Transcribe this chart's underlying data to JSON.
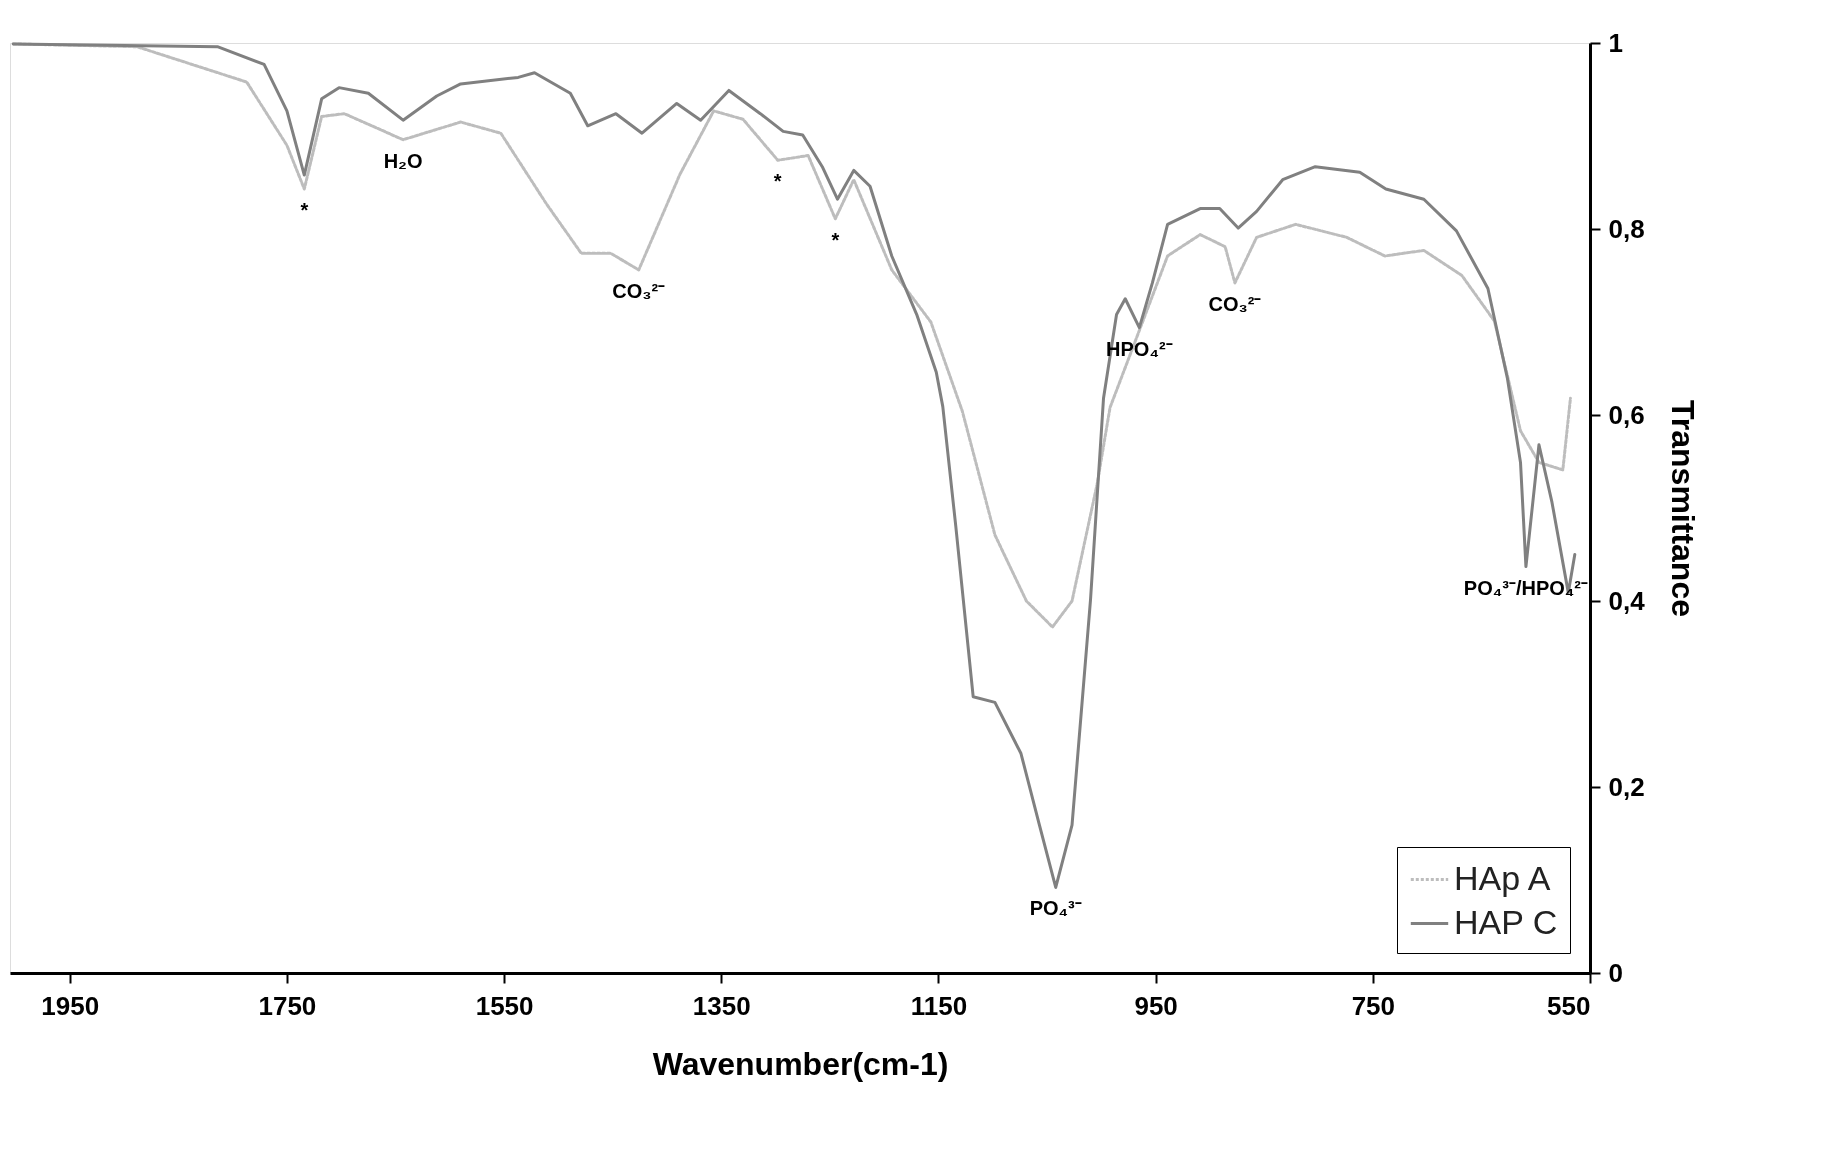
{
  "chart_data": {
    "type": "line",
    "xlabel": "Wavenumber(cm-1)",
    "ylabel": "Transmittance",
    "xlim": [
      2005,
      550
    ],
    "xticks": [
      1950,
      1750,
      1550,
      1350,
      1150,
      950,
      750,
      550
    ],
    "ylim": [
      0,
      1
    ],
    "yticks": [
      0,
      {
        "value": 0.2,
        "label": "0,2"
      },
      {
        "value": 0.4,
        "label": "0,4"
      },
      {
        "value": 0.6,
        "label": "0,6"
      },
      {
        "value": 0.8,
        "label": "0,8"
      },
      1
    ],
    "grid": false,
    "legend": "bottom right",
    "series": [
      {
        "name": "HAp A",
        "color": "#bdbdbd",
        "line_style": "dotted",
        "x": [
          2002,
          1888,
          1787,
          1750,
          1734,
          1718,
          1697,
          1643,
          1590,
          1553,
          1511,
          1479,
          1452,
          1426,
          1388,
          1357,
          1330,
          1298,
          1270,
          1245,
          1228,
          1193,
          1157,
          1128,
          1098,
          1069,
          1045,
          1027,
          1004,
          992,
          964,
          939,
          909,
          886,
          877,
          857,
          821,
          774,
          739,
          703,
          668,
          638,
          614,
          597,
          575,
          568
        ],
        "values": [
          0.999,
          0.996,
          0.958,
          0.89,
          0.843,
          0.921,
          0.924,
          0.896,
          0.915,
          0.903,
          0.827,
          0.774,
          0.774,
          0.756,
          0.859,
          0.927,
          0.918,
          0.874,
          0.879,
          0.811,
          0.853,
          0.756,
          0.7,
          0.604,
          0.471,
          0.4,
          0.372,
          0.4,
          0.525,
          0.608,
          0.694,
          0.771,
          0.794,
          0.781,
          0.742,
          0.791,
          0.805,
          0.791,
          0.771,
          0.777,
          0.75,
          0.701,
          0.583,
          0.549,
          0.541,
          0.618
        ]
      },
      {
        "name": "HAP C",
        "color": "#808080",
        "line_style": "solid",
        "x": [
          2002,
          1814,
          1771,
          1750,
          1734,
          1718,
          1702,
          1675,
          1643,
          1612,
          1590,
          1537,
          1522,
          1489,
          1473,
          1447,
          1423,
          1391,
          1369,
          1343,
          1314,
          1293,
          1275,
          1257,
          1243,
          1228,
          1213,
          1193,
          1170,
          1152,
          1146,
          1134,
          1118,
          1098,
          1074,
          1057,
          1042,
          1027,
          1010,
          998,
          986,
          978,
          965,
          953,
          939,
          909,
          891,
          874,
          857,
          833,
          803,
          762,
          738,
          703,
          673,
          644,
          626,
          614,
          609,
          597,
          585,
          570,
          564
        ],
        "values": [
          0.999,
          0.996,
          0.977,
          0.927,
          0.858,
          0.94,
          0.952,
          0.946,
          0.917,
          0.943,
          0.956,
          0.963,
          0.968,
          0.946,
          0.911,
          0.924,
          0.903,
          0.935,
          0.917,
          0.949,
          0.924,
          0.905,
          0.901,
          0.867,
          0.832,
          0.863,
          0.846,
          0.771,
          0.708,
          0.646,
          0.609,
          0.48,
          0.297,
          0.291,
          0.236,
          0.159,
          0.092,
          0.159,
          0.401,
          0.618,
          0.708,
          0.725,
          0.694,
          0.742,
          0.805,
          0.822,
          0.822,
          0.801,
          0.819,
          0.853,
          0.867,
          0.861,
          0.843,
          0.832,
          0.798,
          0.736,
          0.639,
          0.549,
          0.437,
          0.568,
          0.506,
          0.409,
          0.45
        ]
      }
    ],
    "annotations": [
      {
        "text": "*",
        "x": 1734,
        "y": 0.843
      },
      {
        "text": "H₂O",
        "x": 1643,
        "y": 0.896
      },
      {
        "text": "CO₃²⁻",
        "x": 1426,
        "y": 0.756
      },
      {
        "text": "*",
        "x": 1298,
        "y": 0.874
      },
      {
        "text": "*",
        "x": 1245,
        "y": 0.811
      },
      {
        "text": "HPO₄²⁻",
        "x": 965,
        "y": 0.694
      },
      {
        "text": "CO₃²⁻",
        "x": 877,
        "y": 0.742
      },
      {
        "text": "PO₄³⁻",
        "x": 1042,
        "y": 0.092
      },
      {
        "text": "PO₄³⁻/HPO₄²⁻",
        "x": 609,
        "y": 0.437
      }
    ]
  }
}
